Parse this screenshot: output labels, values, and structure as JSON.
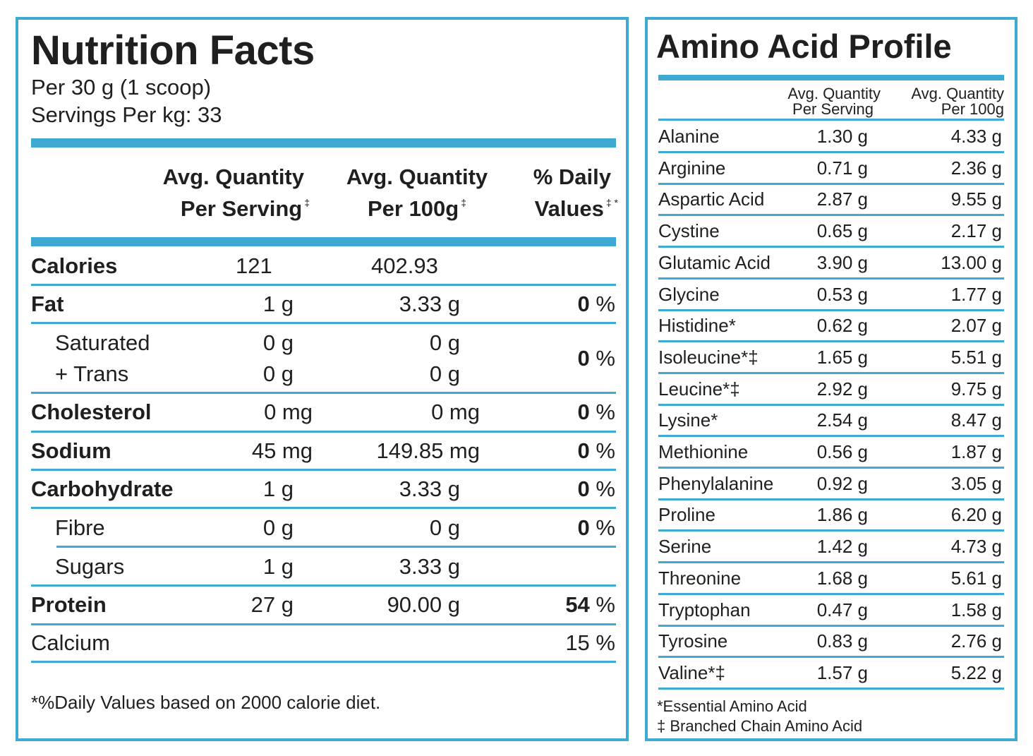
{
  "nutrition": {
    "title": "Nutrition Facts",
    "serving_size": "Per 30 g (1 scoop)",
    "servings": "Servings Per kg: 33",
    "headers": {
      "per_serving_l1": "Avg. Quantity",
      "per_serving_l2": "Per Serving",
      "per_100g_l1": "Avg. Quantity",
      "per_100g_l2": "Per 100g",
      "dv_l1": "% Daily",
      "dv_l2": "Values",
      "mark1": "‡",
      "mark2": "‡",
      "mark3": "‡ *"
    },
    "rows": {
      "calories": {
        "label": "Calories",
        "serving": "121",
        "per100": "402.93",
        "dv": ""
      },
      "fat": {
        "label": "Fat",
        "serving": "1 g",
        "per100": "3.33 g",
        "dv": "0"
      },
      "saturated": {
        "label": "Saturated",
        "serving": "0 g",
        "per100": "0 g"
      },
      "trans": {
        "label": "+ Trans",
        "serving": "0 g",
        "per100": "0 g",
        "dv": "0"
      },
      "cholesterol": {
        "label": "Cholesterol",
        "serving": "0 mg",
        "per100": "0 mg",
        "dv": "0"
      },
      "sodium": {
        "label": "Sodium",
        "serving": "45 mg",
        "per100": "149.85 mg",
        "dv": "0"
      },
      "carbohydrate": {
        "label": "Carbohydrate",
        "serving": "1 g",
        "per100": "3.33 g",
        "dv": "0"
      },
      "fibre": {
        "label": "Fibre",
        "serving": "0 g",
        "per100": "0 g",
        "dv": "0"
      },
      "sugars": {
        "label": "Sugars",
        "serving": "1 g",
        "per100": "3.33 g"
      },
      "protein": {
        "label": "Protein",
        "serving": "27 g",
        "per100": "90.00 g",
        "dv": "54"
      },
      "calcium": {
        "label": "Calcium",
        "dv": "15"
      }
    },
    "percent_sign": "%",
    "footnote": "*%Daily Values based on 2000 calorie diet."
  },
  "amino": {
    "title": "Amino Acid Profile",
    "headers": {
      "serving_l1": "Avg. Quantity",
      "serving_l2": "Per Serving",
      "per100_l1": "Avg. Quantity",
      "per100_l2": "Per 100g"
    },
    "rows": [
      {
        "name": "Alanine",
        "serving": "1.30 g",
        "per100": "4.33 g"
      },
      {
        "name": "Arginine",
        "serving": "0.71 g",
        "per100": "2.36 g"
      },
      {
        "name": "Aspartic Acid",
        "serving": "2.87 g",
        "per100": "9.55 g"
      },
      {
        "name": "Cystine",
        "serving": "0.65 g",
        "per100": "2.17 g"
      },
      {
        "name": "Glutamic Acid",
        "serving": "3.90 g",
        "per100": "13.00 g"
      },
      {
        "name": "Glycine",
        "serving": "0.53 g",
        "per100": "1.77 g"
      },
      {
        "name": "Histidine*",
        "serving": "0.62 g",
        "per100": "2.07 g"
      },
      {
        "name": "Isoleucine*‡",
        "serving": "1.65 g",
        "per100": "5.51 g"
      },
      {
        "name": "Leucine*‡",
        "serving": "2.92 g",
        "per100": "9.75 g"
      },
      {
        "name": "Lysine*",
        "serving": "2.54 g",
        "per100": "8.47 g"
      },
      {
        "name": "Methionine",
        "serving": "0.56 g",
        "per100": "1.87 g"
      },
      {
        "name": "Phenylalanine",
        "serving": "0.92 g",
        "per100": "3.05 g"
      },
      {
        "name": "Proline",
        "serving": "1.86 g",
        "per100": "6.20 g"
      },
      {
        "name": "Serine",
        "serving": "1.42 g",
        "per100": "4.73 g"
      },
      {
        "name": "Threonine",
        "serving": "1.68 g",
        "per100": "5.61 g"
      },
      {
        "name": "Tryptophan",
        "serving": "0.47 g",
        "per100": "1.58 g"
      },
      {
        "name": "Tyrosine",
        "serving": "0.83 g",
        "per100": "2.76 g"
      },
      {
        "name": "Valine*‡",
        "serving": "1.57 g",
        "per100": "5.22 g"
      }
    ],
    "footnote_essential": "*Essential Amino Acid",
    "footnote_bcaa": "‡ Branched Chain Amino Acid"
  },
  "colors": {
    "accent": "#3eaad3",
    "text": "#1f1f1f"
  }
}
